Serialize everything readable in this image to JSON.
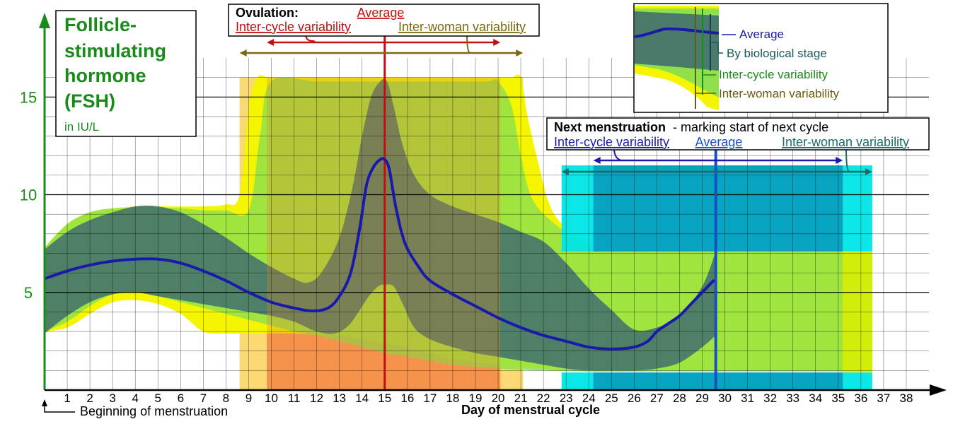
{
  "chart_data": {
    "type": "area",
    "title": "Follicle-stimulating hormone (FSH)",
    "title_lines": [
      "Follicle-",
      "stimulating",
      "hormone",
      "(FSH)"
    ],
    "unit": "in IU/L",
    "xlabel": "Day of menstrual cycle",
    "x_origin_label": "Beginning of menstruation",
    "xlim": [
      0,
      39
    ],
    "ylim": [
      0,
      17
    ],
    "x_ticks": [
      1,
      2,
      3,
      4,
      5,
      6,
      7,
      8,
      9,
      10,
      11,
      12,
      13,
      14,
      15,
      16,
      17,
      18,
      19,
      20,
      21,
      22,
      23,
      24,
      25,
      26,
      27,
      28,
      29,
      30,
      31,
      32,
      33,
      34,
      35,
      36,
      37,
      38
    ],
    "y_ticks": [
      5,
      10,
      15
    ],
    "grid": true,
    "colors": {
      "inter_woman": "#f5f500",
      "inter_cycle": "#8fe04a",
      "biological": "#4a7a6a",
      "average": "#1a1aaa",
      "axis": "#1a8a1a",
      "ovulation_outer": "#f5b800",
      "ovulation_inner": "#ff8050",
      "ovulation_line": "#c01010",
      "menstruation_outer": "#00e5e5",
      "menstruation_inner": "#0a9fc0",
      "menstruation_line": "#1a4fbf"
    },
    "series": [
      {
        "name": "Inter-woman variability",
        "upper_x": [
          0,
          1,
          2,
          3,
          4,
          5,
          6,
          7,
          8,
          8.6,
          9,
          9.4,
          10,
          12,
          14,
          16,
          18,
          20,
          20.6,
          21,
          21.3,
          21.8,
          22.3,
          23,
          24,
          25,
          26,
          28,
          30,
          31,
          33,
          35,
          36.5
        ],
        "upper_y": [
          7.3,
          8.5,
          9.1,
          9.3,
          9.4,
          9.4,
          9.4,
          9.4,
          9.5,
          10,
          14.5,
          16,
          16,
          16,
          16,
          16,
          16,
          16,
          16,
          16,
          14,
          11.5,
          9.4,
          8.3,
          7.5,
          7.2,
          7.15,
          7.1,
          7.1,
          7.1,
          7.1,
          7.1,
          7.1
        ],
        "lower_x": [
          0,
          1,
          2,
          3,
          4,
          5,
          6,
          7,
          8,
          9,
          10,
          11,
          12,
          13,
          14,
          15,
          16,
          17,
          18,
          20,
          22,
          24,
          26,
          28,
          30,
          32,
          34,
          36.5
        ],
        "lower_y": [
          3,
          3.2,
          3.9,
          4.5,
          4.6,
          4.4,
          3.9,
          3,
          2.9,
          2.9,
          2.9,
          2.9,
          2.85,
          2.8,
          2.6,
          2.4,
          2.2,
          1.9,
          1.6,
          1.3,
          1.1,
          1.0,
          1.0,
          1.0,
          1.0,
          1.0,
          1.0,
          1.0
        ]
      },
      {
        "name": "Inter-cycle variability",
        "upper_x": [
          0,
          1,
          2,
          3,
          4,
          5,
          6,
          7,
          8,
          9,
          9.5,
          10,
          12,
          14,
          16,
          18,
          19.5,
          20,
          20.6,
          21,
          21.5,
          22.5,
          23.5,
          24.5,
          25.5,
          27,
          29,
          31,
          33,
          35,
          36.5
        ],
        "upper_y": [
          7.3,
          8.5,
          9.1,
          9.3,
          9.3,
          9.3,
          9.3,
          9.2,
          9.2,
          9.2,
          13,
          15.8,
          15.8,
          15.8,
          15.8,
          15.8,
          15.8,
          15.8,
          14.5,
          12,
          9.8,
          8.5,
          7.8,
          7.4,
          7.2,
          7.15,
          7.1,
          7.1,
          7.1,
          7.1,
          7.1
        ],
        "lower_x": [
          0,
          1,
          2,
          3,
          4,
          5,
          6,
          7,
          8,
          9,
          10,
          11,
          12,
          13,
          14,
          15,
          16,
          17,
          18,
          20,
          22,
          24,
          26,
          28,
          30,
          32,
          34,
          36.5
        ],
        "lower_y": [
          3.0,
          3.5,
          4.3,
          4.9,
          5.0,
          4.8,
          4.5,
          4.2,
          3.9,
          3.6,
          3.3,
          3.0,
          2.8,
          2.5,
          2.2,
          1.9,
          1.7,
          1.5,
          1.3,
          1.1,
          1.0,
          0.95,
          0.95,
          0.95,
          0.95,
          0.95,
          0.95,
          0.95
        ]
      },
      {
        "name": "By biological stage",
        "upper_x": [
          0,
          1,
          2,
          3,
          4,
          5,
          6,
          7,
          8,
          9,
          10,
          11,
          11.6,
          12.2,
          13,
          13.6,
          14,
          14.4,
          14.8,
          15.1,
          15.4,
          15.8,
          16.3,
          17,
          18,
          19,
          20,
          21,
          22,
          23,
          24,
          25,
          26,
          27,
          28,
          29,
          29.6
        ],
        "upper_y": [
          7.2,
          8.1,
          8.7,
          9.1,
          9.4,
          9.4,
          9.1,
          8.5,
          7.8,
          7.0,
          6.3,
          5.7,
          5.5,
          6.0,
          7.8,
          10.5,
          13,
          15,
          15.8,
          15.8,
          14.5,
          12.5,
          11,
          10,
          9.4,
          9.0,
          8.6,
          8.1,
          7.6,
          6.5,
          5.2,
          4.1,
          3.1,
          3.2,
          3.8,
          5.3,
          7.1
        ],
        "lower_x": [
          0,
          1,
          2,
          3,
          4,
          5,
          6,
          7,
          8,
          9,
          10,
          11,
          12,
          12.8,
          13.4,
          13.9,
          14.3,
          14.7,
          15,
          15.4,
          15.8,
          16.3,
          17,
          18,
          19,
          20,
          21,
          22,
          23,
          24,
          25,
          26,
          27,
          28,
          29,
          29.6
        ],
        "lower_y": [
          2.9,
          3.8,
          4.5,
          4.9,
          5.0,
          4.8,
          4.6,
          4.4,
          4.2,
          4.0,
          3.8,
          3.5,
          3.0,
          2.9,
          3.3,
          4.1,
          4.8,
          5.3,
          5.4,
          5.3,
          4.4,
          3.2,
          2.6,
          2.2,
          1.9,
          1.7,
          1.5,
          1.3,
          1.1,
          1.0,
          1.0,
          1.0,
          1.1,
          1.4,
          2.2,
          2.8
        ]
      },
      {
        "name": "Average",
        "x": [
          0,
          1,
          2,
          3,
          4,
          5,
          6,
          7,
          8,
          9,
          10,
          11,
          11.8,
          12.5,
          13,
          13.5,
          13.9,
          14.2,
          14.5,
          14.8,
          15.0,
          15.2,
          15.5,
          15.9,
          16.5,
          17,
          18,
          19,
          20,
          21,
          22,
          23,
          24,
          25,
          26,
          26.6,
          27,
          27.5,
          28,
          28.5,
          29,
          29.5
        ],
        "y": [
          5.7,
          6.1,
          6.4,
          6.6,
          6.7,
          6.7,
          6.5,
          6.1,
          5.6,
          5.0,
          4.5,
          4.2,
          4.05,
          4.2,
          4.8,
          6.0,
          8.3,
          10.5,
          11.4,
          11.8,
          11.8,
          11.3,
          9.3,
          7.5,
          6.3,
          5.6,
          4.9,
          4.3,
          3.7,
          3.2,
          2.8,
          2.5,
          2.2,
          2.1,
          2.2,
          2.5,
          3.0,
          3.4,
          3.8,
          4.4,
          5.0,
          5.6
        ]
      }
    ],
    "ovulation": {
      "title": "Ovulation:",
      "average_label": "Average",
      "inter_cycle_label": "Inter-cycle variability",
      "inter_woman_label": "Inter-woman variability",
      "average_day": 15,
      "inter_cycle_range": [
        9.8,
        20.1
      ],
      "inter_woman_range": [
        8.6,
        21.1
      ]
    },
    "next_menstruation": {
      "title": "Next menstruation",
      "subtitle": "- marking start of next cycle",
      "inter_cycle_label": "Inter-cycle variability",
      "average_label": "Average",
      "inter_woman_label": "Inter-woman variability",
      "average_day": 29.6,
      "inter_cycle_range": [
        24.2,
        35.2
      ],
      "inter_woman_range": [
        22.8,
        36.5
      ]
    },
    "legend": {
      "position": "top-right",
      "items": [
        {
          "label": "Average",
          "color": "#1a1aaa"
        },
        {
          "label": "By biological stage",
          "color": "#1a5a5a"
        },
        {
          "label": "Inter-cycle variability",
          "color": "#1a8a1a"
        },
        {
          "label": "Inter-woman variability",
          "color": "#6a5a10"
        }
      ]
    }
  }
}
